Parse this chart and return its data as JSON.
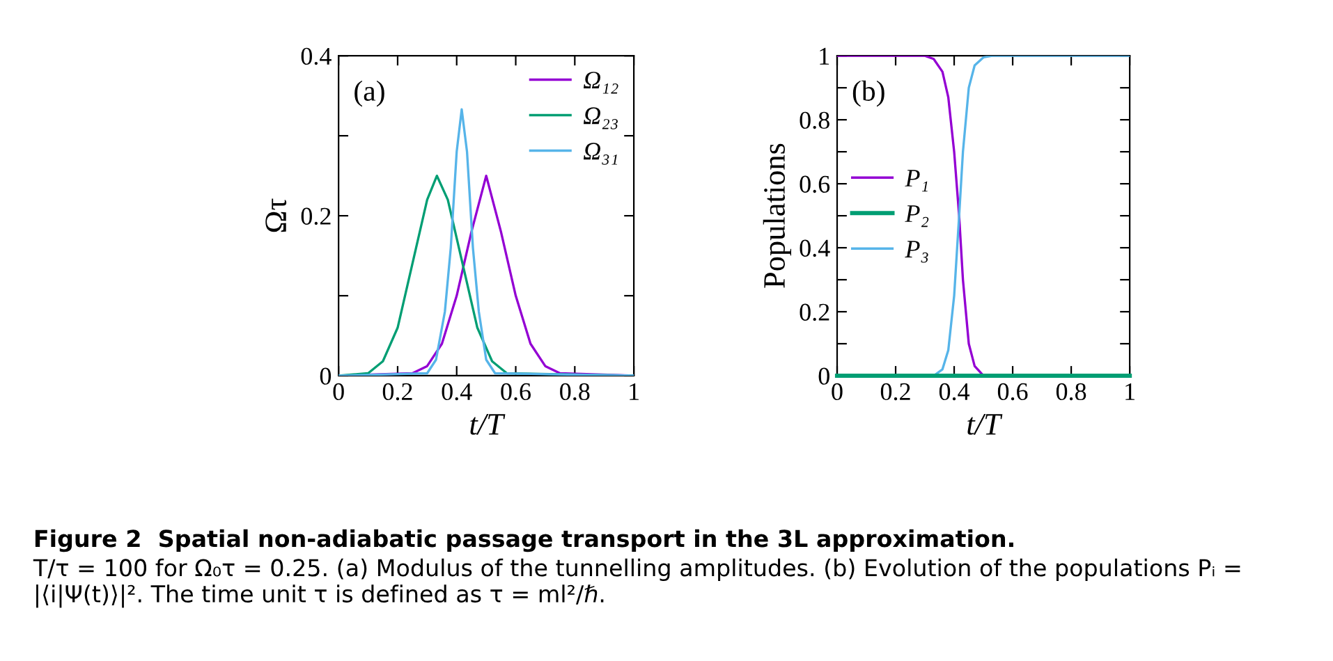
{
  "chart_data": [
    {
      "type": "line",
      "xlabel": "t/T",
      "ylabel": "Ωτ",
      "xlim": [
        0,
        1
      ],
      "ylim": [
        0,
        0.4
      ],
      "xticks": [
        0,
        0.2,
        0.4,
        0.6,
        0.8,
        1
      ],
      "yticks": [
        0,
        {
          "value": 0.1,
          "label": null
        },
        0.2,
        {
          "value": 0.3,
          "label": null
        },
        0.4
      ],
      "legend": "top right",
      "grid": false,
      "annotations": [
        "(a)"
      ],
      "series": [
        {
          "name": "Ω₁₂",
          "color": "#9400d3",
          "x": [
            0,
            0.25,
            0.3,
            0.35,
            0.4,
            0.45,
            0.5,
            0.55,
            0.6,
            0.65,
            0.7,
            0.75,
            1
          ],
          "values": [
            0,
            0.003,
            0.012,
            0.04,
            0.1,
            0.18,
            0.25,
            0.18,
            0.1,
            0.04,
            0.012,
            0.003,
            0
          ]
        },
        {
          "name": "Ω₂₃",
          "color": "#009e73",
          "x": [
            0,
            0.1,
            0.15,
            0.2,
            0.25,
            0.3,
            0.333,
            0.37,
            0.42,
            0.47,
            0.52,
            0.57,
            1
          ],
          "values": [
            0,
            0.003,
            0.018,
            0.06,
            0.14,
            0.22,
            0.25,
            0.22,
            0.14,
            0.06,
            0.018,
            0.003,
            0
          ]
        },
        {
          "name": "Ω₃₁",
          "color": "#56b4e9",
          "x": [
            0,
            0.3,
            0.33,
            0.36,
            0.38,
            0.4,
            0.417,
            0.435,
            0.455,
            0.475,
            0.5,
            0.53,
            1
          ],
          "values": [
            0,
            0.003,
            0.02,
            0.08,
            0.16,
            0.28,
            0.333,
            0.28,
            0.16,
            0.08,
            0.02,
            0.003,
            0
          ]
        }
      ]
    },
    {
      "type": "line",
      "xlabel": "t/T",
      "ylabel": "Populations",
      "xlim": [
        0,
        1
      ],
      "ylim": [
        0,
        1
      ],
      "xticks": [
        0,
        0.2,
        0.4,
        0.6,
        0.8,
        1
      ],
      "yticks": [
        0,
        {
          "value": 0.1,
          "label": null
        },
        0.2,
        {
          "value": 0.3,
          "label": null
        },
        0.4,
        {
          "value": 0.5,
          "label": null
        },
        0.6,
        {
          "value": 0.7,
          "label": null
        },
        0.8,
        {
          "value": 0.9,
          "label": null
        },
        1
      ],
      "legend": "left",
      "grid": false,
      "annotations": [
        "(b)",
        "Figure 2  Spatial non-adiabatic passage transport in the 3L approximation.",
        "T/τ = 100 for Ω₀τ = 0.25. (a) Modulus of the tunnelling amplitudes. (b) Evolution of the populations Pᵢ = |⟨i|Ψ(t)⟩|². The time unit τ is defined as τ = ml²/ℏ."
      ],
      "series": [
        {
          "name": "P₁",
          "color": "#9400d3",
          "x": [
            0,
            0.3,
            0.33,
            0.36,
            0.38,
            0.4,
            0.417,
            0.43,
            0.45,
            0.47,
            0.5,
            1
          ],
          "values": [
            1,
            1,
            0.99,
            0.95,
            0.87,
            0.7,
            0.5,
            0.3,
            0.1,
            0.03,
            0,
            0
          ]
        },
        {
          "name": "P₂",
          "color": "#009e73",
          "x": [
            0,
            1
          ],
          "values": [
            0,
            0
          ]
        },
        {
          "name": "P₃",
          "color": "#56b4e9",
          "x": [
            0,
            0.33,
            0.36,
            0.38,
            0.4,
            0.417,
            0.43,
            0.45,
            0.47,
            0.5,
            0.53,
            1
          ],
          "values": [
            0,
            0,
            0.02,
            0.08,
            0.25,
            0.5,
            0.7,
            0.9,
            0.97,
            0.995,
            1,
            1
          ]
        }
      ]
    }
  ]
}
